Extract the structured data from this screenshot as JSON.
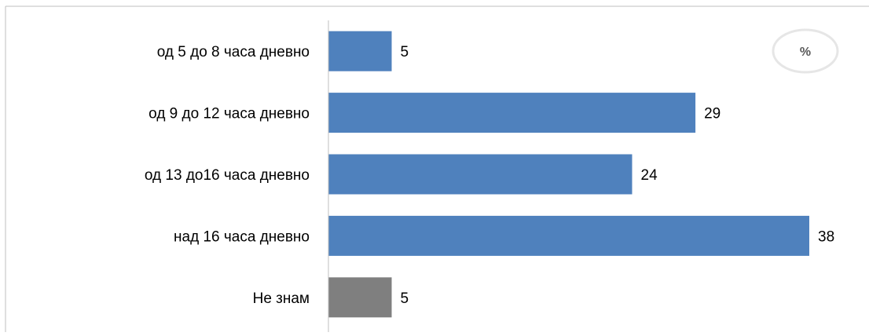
{
  "chart_data": {
    "type": "bar",
    "orientation": "horizontal",
    "categories": [
      "од 5 до 8 часа дневно",
      "од 9 до 12 часа дневно",
      "од 13 до16 часа дневно",
      "над 16 часа дневно",
      "Не знам"
    ],
    "values": [
      5,
      29,
      24,
      38,
      5
    ],
    "bar_colors": [
      "#4F81BD",
      "#4F81BD",
      "#4F81BD",
      "#4F81BD",
      "#7F7F7F"
    ],
    "unit_label": "%",
    "title": "",
    "xlabel": "",
    "ylabel": "",
    "xlim": [
      0,
      38
    ],
    "grid": false,
    "legend": "none",
    "data_labels": true
  }
}
